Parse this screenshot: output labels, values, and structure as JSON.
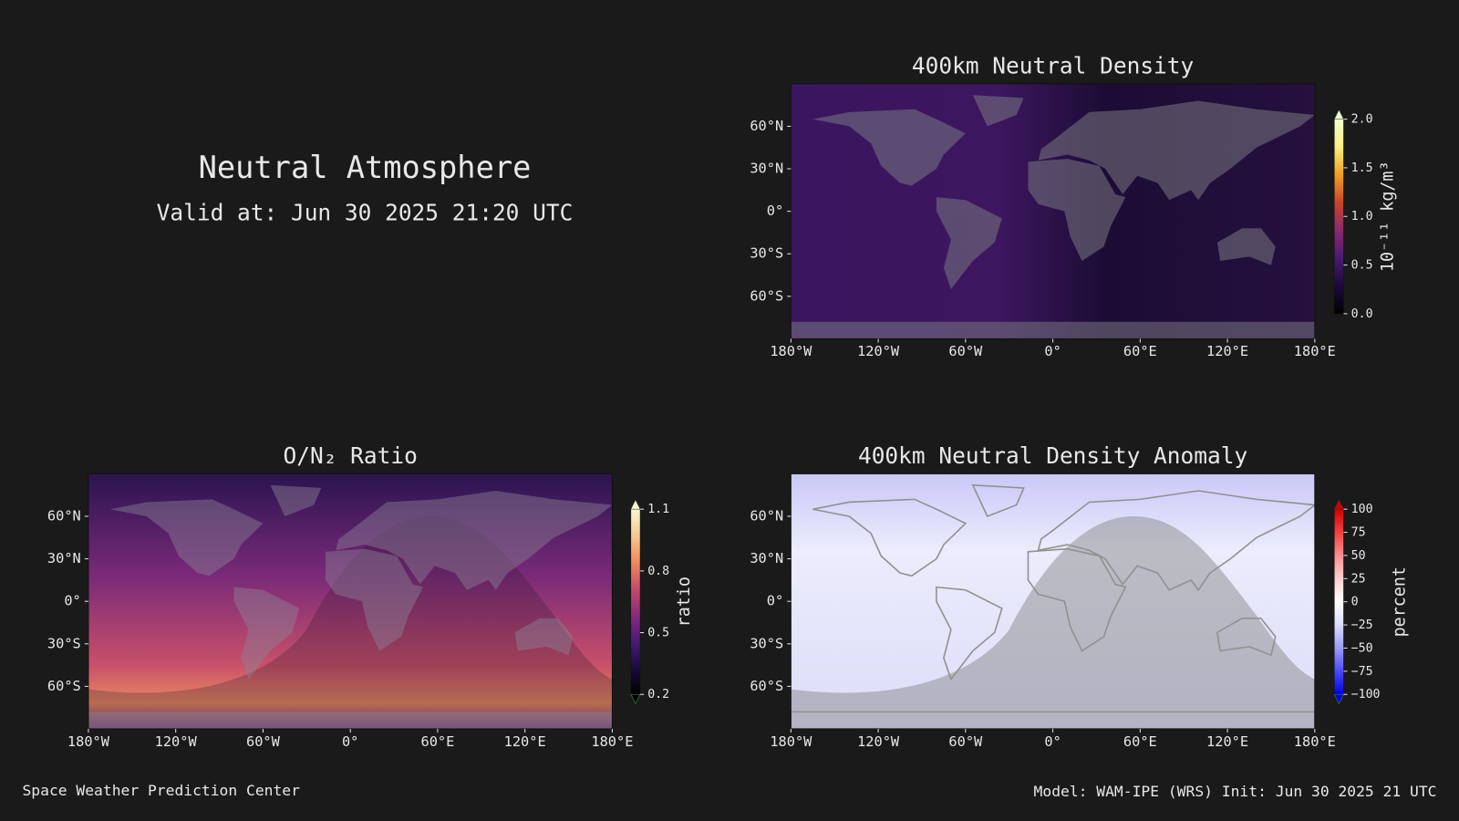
{
  "title": "Neutral Atmosphere",
  "subtitle": "Valid at: Jun 30 2025 21:20 UTC",
  "footer_left": "Space Weather Prediction Center",
  "footer_right": "Model: WAM-IPE (WRS) Init: Jun 30 2025 21 UTC",
  "panels": [
    {
      "title": "400km Neutral Density",
      "xlim": [
        -180,
        180
      ],
      "ylim": [
        -90,
        90
      ],
      "xticks": [
        {
          "value": -180,
          "label": "180°W"
        },
        {
          "value": -120,
          "label": "120°W"
        },
        {
          "value": -60,
          "label": "60°W"
        },
        {
          "value": 0,
          "label": "0°"
        },
        {
          "value": 60,
          "label": "60°E"
        },
        {
          "value": 120,
          "label": "120°E"
        },
        {
          "value": 180,
          "label": "180°E"
        }
      ],
      "yticks": [
        {
          "value": 60,
          "label": "60°N"
        },
        {
          "value": 30,
          "label": "30°N"
        },
        {
          "value": 0,
          "label": "0°"
        },
        {
          "value": -30,
          "label": "30°S"
        },
        {
          "value": -60,
          "label": "60°S"
        }
      ],
      "colorbar": {
        "label": "10⁻¹¹ kg/m³",
        "lim": [
          0,
          2
        ],
        "extend": "max",
        "colors": [
          "#000000",
          "#1c0a3a",
          "#4a1a6e",
          "#8a2a6e",
          "#c8452a",
          "#f0a020",
          "#f8f080",
          "#f0ffd0"
        ],
        "ticks": [
          {
            "value": 0,
            "label": "0.0"
          },
          0.5,
          {
            "value": 1,
            "label": "1.0"
          },
          1.5,
          {
            "value": 2,
            "label": "2.0"
          }
        ]
      }
    },
    {
      "title": "O/N₂ Ratio",
      "xlim": [
        -180,
        180
      ],
      "ylim": [
        -90,
        90
      ],
      "xticks": [
        {
          "value": -180,
          "label": "180°W"
        },
        {
          "value": -120,
          "label": "120°W"
        },
        {
          "value": -60,
          "label": "60°W"
        },
        {
          "value": 0,
          "label": "0°"
        },
        {
          "value": 60,
          "label": "60°E"
        },
        {
          "value": 120,
          "label": "120°E"
        },
        {
          "value": 180,
          "label": "180°E"
        }
      ],
      "yticks": [
        {
          "value": 60,
          "label": "60°N"
        },
        {
          "value": 30,
          "label": "30°N"
        },
        {
          "value": 0,
          "label": "0°"
        },
        {
          "value": -30,
          "label": "30°S"
        },
        {
          "value": -60,
          "label": "60°S"
        }
      ],
      "colorbar": {
        "label": "ratio",
        "lim": [
          0.2,
          1.1
        ],
        "extend": "both",
        "colors": [
          "#000000",
          "#1a0c3c",
          "#4a1a78",
          "#8a2a80",
          "#c84a6a",
          "#f08a5a",
          "#f8c890",
          "#f8f8d0"
        ],
        "ticks": [
          0.2,
          0.5,
          0.8,
          1.1
        ]
      }
    },
    {
      "title": "400km Neutral Density Anomaly",
      "xlim": [
        -180,
        180
      ],
      "ylim": [
        -90,
        90
      ],
      "xticks": [
        {
          "value": -180,
          "label": "180°W"
        },
        {
          "value": -120,
          "label": "120°W"
        },
        {
          "value": -60,
          "label": "60°W"
        },
        {
          "value": 0,
          "label": "0°"
        },
        {
          "value": 60,
          "label": "60°E"
        },
        {
          "value": 120,
          "label": "120°E"
        },
        {
          "value": 180,
          "label": "180°E"
        }
      ],
      "yticks": [
        {
          "value": 60,
          "label": "60°N"
        },
        {
          "value": 30,
          "label": "30°N"
        },
        {
          "value": 0,
          "label": "0°"
        },
        {
          "value": -30,
          "label": "30°S"
        },
        {
          "value": -60,
          "label": "60°S"
        }
      ],
      "colorbar": {
        "label": "percent",
        "lim": [
          -100,
          100
        ],
        "extend": "both",
        "colors": [
          "#0000e0",
          "#4a4af8",
          "#9a9af8",
          "#dcdcfc",
          "#ffffff",
          "#fcd0d0",
          "#f89090",
          "#f04040",
          "#d00000"
        ],
        "ticks": [
          {
            "value": -100,
            "label": "−100"
          },
          {
            "value": -75,
            "label": "−75"
          },
          {
            "value": -50,
            "label": "−50"
          },
          {
            "value": -25,
            "label": "−25"
          },
          0,
          25,
          50,
          75,
          100
        ]
      }
    }
  ]
}
